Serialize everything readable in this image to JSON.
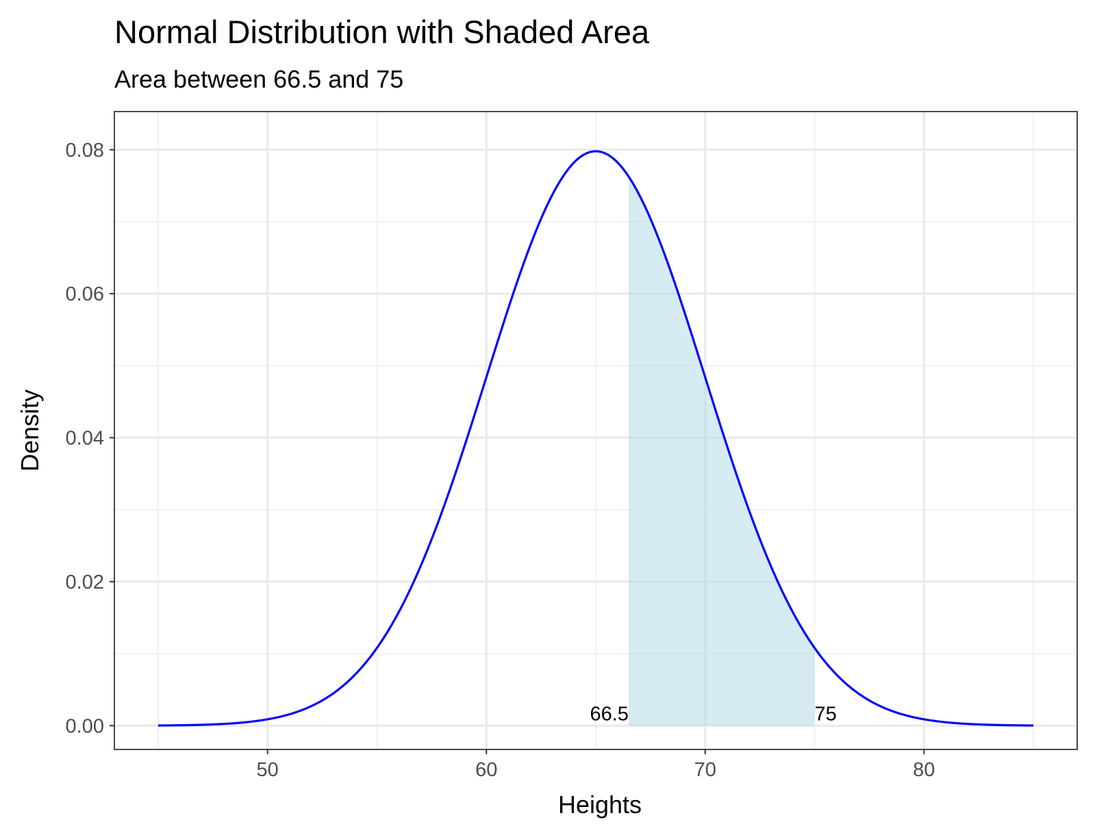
{
  "chart_data": {
    "type": "area",
    "title": "Normal Distribution with Shaded Area",
    "subtitle": "Area between 66.5 and 75",
    "xlabel": "Heights",
    "ylabel": "Density",
    "distribution": {
      "name": "normal",
      "mean": 65,
      "sd": 5
    },
    "x_range": [
      45,
      85
    ],
    "xlim": [
      43,
      87
    ],
    "ylim": [
      -0.0033,
      0.0853
    ],
    "x_ticks": [
      50,
      60,
      70,
      80
    ],
    "x_tick_labels": [
      "50",
      "60",
      "70",
      "80"
    ],
    "x_minor_ticks": [
      45,
      55,
      65,
      75,
      85
    ],
    "y_ticks": [
      0,
      0.02,
      0.04,
      0.06,
      0.08
    ],
    "y_tick_labels": [
      "0.00",
      "0.02",
      "0.04",
      "0.06",
      "0.08"
    ],
    "y_minor_ticks": [
      0.01,
      0.03,
      0.05,
      0.07
    ],
    "shaded_region": {
      "from": 66.5,
      "to": 75
    },
    "annotations": [
      {
        "x": 66.5,
        "y": 0,
        "label": "66.5",
        "side": "left"
      },
      {
        "x": 75,
        "y": 0,
        "label": "75",
        "side": "right"
      }
    ],
    "series": [
      {
        "x": [
          45,
          46,
          47,
          48,
          49,
          50,
          51,
          52,
          53,
          54,
          55,
          56,
          57,
          58,
          59,
          60,
          61,
          62,
          63,
          64,
          65,
          66,
          67,
          68,
          69,
          70,
          71,
          72,
          73,
          74,
          75,
          76,
          77,
          78,
          79,
          80,
          81,
          82,
          83,
          84,
          85
        ],
        "y": [
          2.68e-05,
          5.89e-05,
          0.0001232,
          0.0002439,
          0.0004567,
          0.000886,
          0.0015866,
          0.0026964,
          0.0043486,
          0.0066561,
          0.0107982,
          0.0150569,
          0.022381,
          0.0315614,
          0.0422239,
          0.0483941,
          0.0579383,
          0.0666449,
          0.073654,
          0.0782085,
          0.0797885,
          0.0782085,
          0.073654,
          0.0666449,
          0.0579383,
          0.0483941,
          0.0388372,
          0.0299455,
          0.0221842,
          0.01579,
          0.0107982,
          0.0070949,
          0.0044789,
          0.0027166,
          0.001583,
          0.000886,
          0.0004567,
          0.0002439,
          0.0001232,
          5.89e-05,
          2.68e-05
        ]
      }
    ],
    "colors": {
      "curve": "#0000ff",
      "shade": "#add8e6",
      "shade_opacity": 0.5,
      "grid_major": "#ebebeb",
      "grid_minor": "#f2f2f2",
      "panel_border": "#333333",
      "tick_text": "#4d4d4d"
    },
    "grid": true,
    "legend": "none"
  }
}
